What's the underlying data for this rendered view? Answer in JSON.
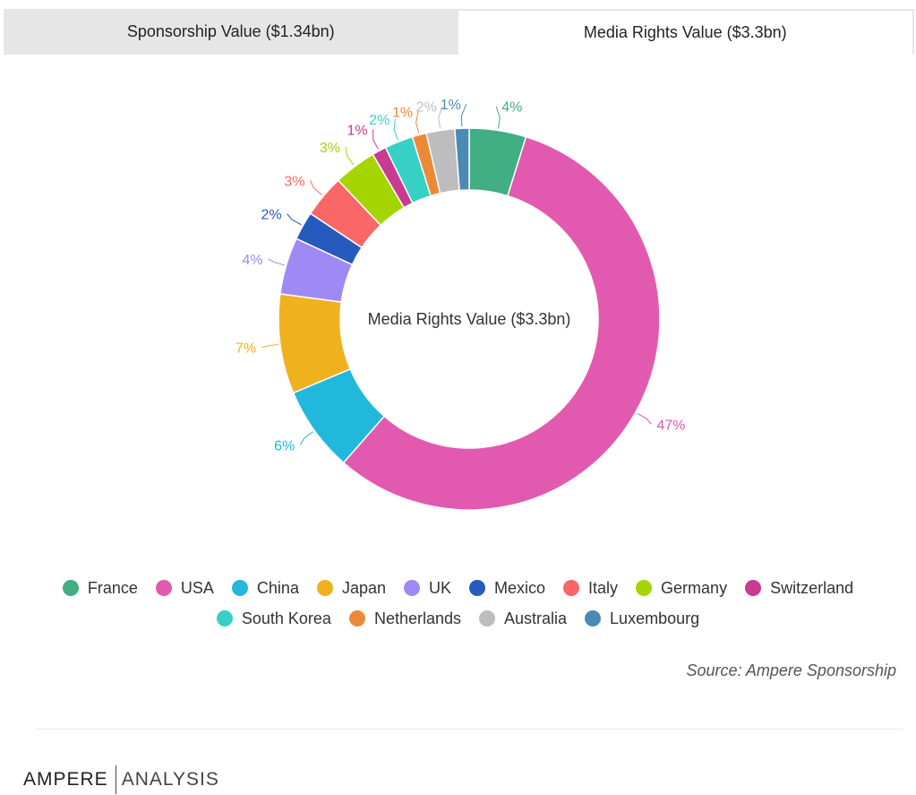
{
  "tabs": {
    "sponsorship": "Sponsorship Value ($1.34bn)",
    "media": "Media Rights Value ($3.3bn)"
  },
  "chart_data": {
    "type": "pie",
    "subtype": "donut",
    "title": "",
    "center_label": "Media Rights Value ($3.3bn)",
    "slices": [
      {
        "label": "France",
        "value": 4,
        "color": "#41ae84",
        "text": "4%"
      },
      {
        "label": "USA",
        "value": 47,
        "color": "#e15ab0",
        "text": "47%"
      },
      {
        "label": "China",
        "value": 6,
        "color": "#22b8db",
        "text": "6%"
      },
      {
        "label": "Japan",
        "value": 7,
        "color": "#efb11e",
        "text": "7%"
      },
      {
        "label": "UK",
        "value": 4,
        "color": "#9f8af5",
        "text": "4%"
      },
      {
        "label": "Mexico",
        "value": 2,
        "color": "#255bbd",
        "text": "2%"
      },
      {
        "label": "Italy",
        "value": 3,
        "color": "#fa6766",
        "text": "3%"
      },
      {
        "label": "Germany",
        "value": 3,
        "color": "#a4d500",
        "text": "3%"
      },
      {
        "label": "Switzerland",
        "value": 1,
        "color": "#c93a93",
        "text": "1%"
      },
      {
        "label": "South Korea",
        "value": 2,
        "color": "#36d1c4",
        "text": "2%"
      },
      {
        "label": "Netherlands",
        "value": 1,
        "color": "#ea8a39",
        "text": "1%"
      },
      {
        "label": "Australia",
        "value": 2,
        "color": "#bdbdbd",
        "text": "2%"
      },
      {
        "label": "Luxembourg",
        "value": 1,
        "color": "#4b8ab5",
        "text": "1%"
      }
    ],
    "legend_position": "bottom"
  },
  "source": "Source: Ampere Sponsorship",
  "logo": {
    "bold": "AMPERE",
    "light": "ANALYSIS"
  }
}
